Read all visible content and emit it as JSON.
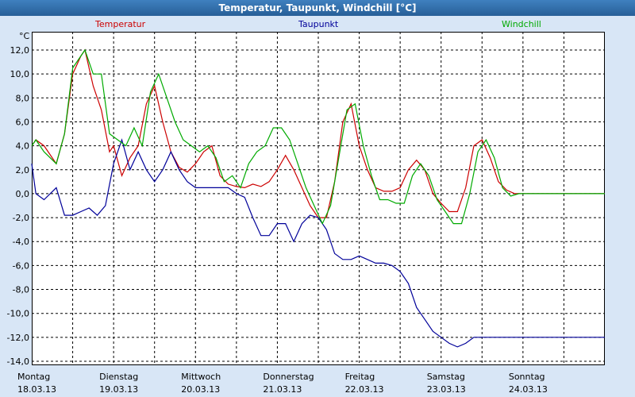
{
  "window": {
    "title": "Temperatur, Taupunkt, Windchill [°C]"
  },
  "legend": [
    {
      "name": "Temperatur",
      "color": "#cc0000"
    },
    {
      "name": "Taupunkt",
      "color": "#000099"
    },
    {
      "name": "Windchill",
      "color": "#00aa00"
    }
  ],
  "chart_data": {
    "type": "line",
    "title": "Temperatur, Taupunkt, Windchill [°C]",
    "ylabel": "°C",
    "ylim": [
      -14.0,
      12.0
    ],
    "yticks": [
      "12,0",
      "10,0",
      "8,0",
      "6,0",
      "4,0",
      "2,0",
      "0,0",
      "-2,0",
      "-4,0",
      "-6,0",
      "-8,0",
      "-10,0",
      "-12,0",
      "-14,0"
    ],
    "xlim": [
      0,
      7
    ],
    "xticks": [
      {
        "day": "Montag",
        "date": "18.03.13"
      },
      {
        "day": "Dienstag",
        "date": "19.03.13"
      },
      {
        "day": "Mittwoch",
        "date": "20.03.13"
      },
      {
        "day": "Donnerstag",
        "date": "21.03.13"
      },
      {
        "day": "Freitag",
        "date": "22.03.13"
      },
      {
        "day": "Samstag",
        "date": "23.03.13"
      },
      {
        "day": "Sonntag",
        "date": "24.03.13"
      }
    ],
    "grid": true,
    "series": [
      {
        "name": "Temperatur",
        "color": "#cc0000",
        "x": [
          0.0,
          0.05,
          0.15,
          0.3,
          0.4,
          0.5,
          0.6,
          0.65,
          0.75,
          0.85,
          0.95,
          1.0,
          1.1,
          1.2,
          1.3,
          1.4,
          1.5,
          1.6,
          1.7,
          1.8,
          1.9,
          2.0,
          2.1,
          2.2,
          2.3,
          2.4,
          2.5,
          2.6,
          2.7,
          2.8,
          2.9,
          3.0,
          3.1,
          3.2,
          3.3,
          3.4,
          3.5,
          3.6,
          3.7,
          3.8,
          3.9,
          4.0,
          4.1,
          4.2,
          4.3,
          4.4,
          4.5,
          4.6,
          4.7,
          4.8,
          4.9,
          5.0,
          5.1,
          5.2,
          5.3,
          5.4,
          5.5,
          5.6,
          5.7,
          5.8,
          5.9,
          6.0,
          6.1,
          6.2,
          6.3,
          6.4,
          6.5,
          6.6,
          6.7,
          6.8,
          6.9,
          7.0
        ],
        "values": [
          4.0,
          4.5,
          4.0,
          2.5,
          5.0,
          10.0,
          11.5,
          12.0,
          9.0,
          7.0,
          3.5,
          4.0,
          1.5,
          3.0,
          4.0,
          7.5,
          9.0,
          6.0,
          3.5,
          2.2,
          1.8,
          2.5,
          3.5,
          4.0,
          1.5,
          0.8,
          0.6,
          0.5,
          0.8,
          0.6,
          1.0,
          2.0,
          3.2,
          2.0,
          0.5,
          -1.0,
          -2.0,
          -2.0,
          1.0,
          6.0,
          7.5,
          4.0,
          2.0,
          0.5,
          0.2,
          0.2,
          0.5,
          2.0,
          2.8,
          2.0,
          0.0,
          -0.8,
          -1.5,
          -1.5,
          0.5,
          4.0,
          4.5,
          3.0,
          1.0,
          0.3,
          0.0,
          0.0,
          0.0,
          0.0,
          0.0,
          0.0,
          0.0,
          0.0,
          0.0,
          0.0,
          0.0,
          0.0
        ]
      },
      {
        "name": "Taupunkt",
        "color": "#000099",
        "x": [
          0.0,
          0.05,
          0.15,
          0.3,
          0.4,
          0.5,
          0.6,
          0.7,
          0.8,
          0.9,
          1.0,
          1.1,
          1.2,
          1.3,
          1.4,
          1.5,
          1.6,
          1.7,
          1.8,
          1.9,
          2.0,
          2.1,
          2.2,
          2.3,
          2.4,
          2.5,
          2.6,
          2.7,
          2.8,
          2.9,
          3.0,
          3.1,
          3.2,
          3.3,
          3.4,
          3.5,
          3.6,
          3.7,
          3.8,
          3.9,
          4.0,
          4.1,
          4.2,
          4.3,
          4.4,
          4.5,
          4.6,
          4.7,
          4.8,
          4.9,
          5.0,
          5.1,
          5.2,
          5.3,
          5.4,
          5.5,
          5.6,
          5.7,
          5.8,
          5.9,
          6.0,
          6.1,
          6.2,
          6.3,
          6.4,
          6.5,
          6.6,
          6.7,
          6.8,
          6.9,
          7.0
        ],
        "values": [
          2.5,
          0.0,
          -0.5,
          0.5,
          -1.8,
          -1.8,
          -1.5,
          -1.2,
          -1.8,
          -1.0,
          2.5,
          4.5,
          2.0,
          3.5,
          2.0,
          1.0,
          2.0,
          3.5,
          2.0,
          1.0,
          0.5,
          0.5,
          0.5,
          0.5,
          0.5,
          0.0,
          -0.3,
          -2.0,
          -3.5,
          -3.5,
          -2.5,
          -2.5,
          -4.0,
          -2.5,
          -1.8,
          -2.0,
          -3.0,
          -5.0,
          -5.5,
          -5.5,
          -5.2,
          -5.5,
          -5.8,
          -5.8,
          -6.0,
          -6.5,
          -7.5,
          -9.5,
          -10.5,
          -11.5,
          -12.0,
          -12.5,
          -12.8,
          -12.5,
          -12.0,
          -12.0,
          -12.0,
          -12.0,
          -12.0,
          -12.0,
          -12.0,
          -12.0,
          -12.0,
          -12.0,
          -12.0,
          -12.0,
          -12.0,
          -12.0,
          -12.0,
          -12.0,
          -12.0
        ]
      },
      {
        "name": "Windchill",
        "color": "#00aa00",
        "x": [
          0.0,
          0.05,
          0.15,
          0.3,
          0.4,
          0.5,
          0.6,
          0.65,
          0.75,
          0.85,
          0.95,
          1.05,
          1.15,
          1.25,
          1.35,
          1.45,
          1.55,
          1.65,
          1.75,
          1.85,
          1.95,
          2.05,
          2.15,
          2.25,
          2.35,
          2.45,
          2.55,
          2.65,
          2.75,
          2.85,
          2.95,
          3.05,
          3.15,
          3.25,
          3.35,
          3.45,
          3.55,
          3.65,
          3.75,
          3.85,
          3.95,
          4.05,
          4.15,
          4.25,
          4.35,
          4.45,
          4.55,
          4.65,
          4.75,
          4.85,
          4.95,
          5.05,
          5.15,
          5.25,
          5.35,
          5.45,
          5.55,
          5.65,
          5.75,
          5.85,
          5.95,
          6.05,
          6.15,
          6.25,
          6.35,
          6.45,
          6.55,
          6.65,
          6.75,
          6.85,
          6.95,
          7.0
        ],
        "values": [
          4.0,
          4.5,
          3.5,
          2.5,
          5.0,
          10.5,
          11.5,
          12.0,
          10.0,
          10.0,
          5.0,
          4.5,
          4.0,
          5.5,
          4.0,
          8.5,
          10.0,
          8.0,
          6.0,
          4.5,
          4.0,
          3.5,
          4.0,
          3.0,
          1.0,
          1.5,
          0.5,
          2.5,
          3.5,
          4.0,
          5.5,
          5.5,
          4.5,
          2.5,
          0.5,
          -1.0,
          -2.5,
          -1.0,
          3.0,
          7.0,
          7.5,
          4.0,
          1.5,
          -0.5,
          -0.5,
          -0.8,
          -0.8,
          1.5,
          2.5,
          1.5,
          -0.5,
          -1.5,
          -2.5,
          -2.5,
          0.0,
          3.5,
          4.5,
          3.0,
          0.5,
          -0.2,
          0.0,
          0.0,
          0.0,
          0.0,
          0.0,
          0.0,
          0.0,
          0.0,
          0.0,
          0.0,
          0.0,
          0.0
        ]
      }
    ]
  }
}
